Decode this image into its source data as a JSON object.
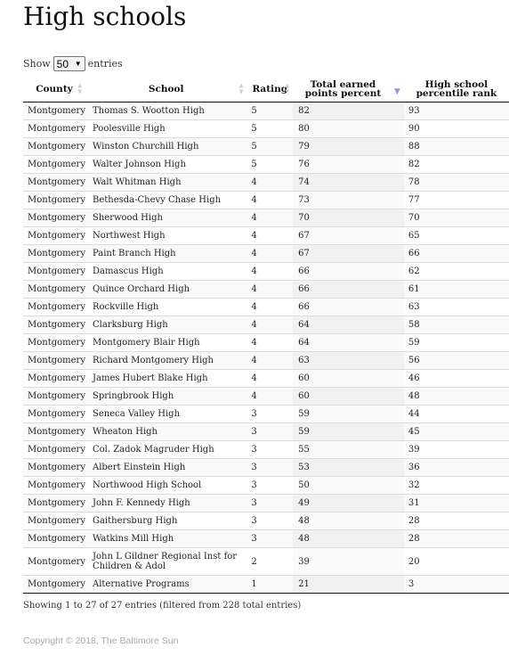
{
  "title": "High schools",
  "length_menu": {
    "show": "Show",
    "value": "50",
    "entries": "entries"
  },
  "columns": [
    {
      "label": "County",
      "sort": "both"
    },
    {
      "label": "School",
      "sort": "both"
    },
    {
      "label": "Rating",
      "sort": "both"
    },
    {
      "label": "Total earned points percent",
      "sort": "desc"
    },
    {
      "label": "High school percentile rank",
      "sort": "none"
    }
  ],
  "rows": [
    {
      "county": "Montgomery",
      "school": "Thomas S. Wootton High",
      "rating": "5",
      "points": "82",
      "percentile": "93"
    },
    {
      "county": "Montgomery",
      "school": "Poolesville High",
      "rating": "5",
      "points": "80",
      "percentile": "90"
    },
    {
      "county": "Montgomery",
      "school": "Winston Churchill High",
      "rating": "5",
      "points": "79",
      "percentile": "88"
    },
    {
      "county": "Montgomery",
      "school": "Walter Johnson High",
      "rating": "5",
      "points": "76",
      "percentile": "82"
    },
    {
      "county": "Montgomery",
      "school": "Walt Whitman High",
      "rating": "4",
      "points": "74",
      "percentile": "78"
    },
    {
      "county": "Montgomery",
      "school": "Bethesda-Chevy Chase High",
      "rating": "4",
      "points": "73",
      "percentile": "77"
    },
    {
      "county": "Montgomery",
      "school": "Sherwood High",
      "rating": "4",
      "points": "70",
      "percentile": "70"
    },
    {
      "county": "Montgomery",
      "school": "Northwest High",
      "rating": "4",
      "points": "67",
      "percentile": "65"
    },
    {
      "county": "Montgomery",
      "school": "Paint Branch High",
      "rating": "4",
      "points": "67",
      "percentile": "66"
    },
    {
      "county": "Montgomery",
      "school": "Damascus High",
      "rating": "4",
      "points": "66",
      "percentile": "62"
    },
    {
      "county": "Montgomery",
      "school": "Quince Orchard High",
      "rating": "4",
      "points": "66",
      "percentile": "61"
    },
    {
      "county": "Montgomery",
      "school": "Rockville High",
      "rating": "4",
      "points": "66",
      "percentile": "63"
    },
    {
      "county": "Montgomery",
      "school": "Clarksburg High",
      "rating": "4",
      "points": "64",
      "percentile": "58"
    },
    {
      "county": "Montgomery",
      "school": "Montgomery Blair High",
      "rating": "4",
      "points": "64",
      "percentile": "59"
    },
    {
      "county": "Montgomery",
      "school": "Richard Montgomery High",
      "rating": "4",
      "points": "63",
      "percentile": "56"
    },
    {
      "county": "Montgomery",
      "school": "James Hubert Blake High",
      "rating": "4",
      "points": "60",
      "percentile": "46"
    },
    {
      "county": "Montgomery",
      "school": "Springbrook High",
      "rating": "4",
      "points": "60",
      "percentile": "48"
    },
    {
      "county": "Montgomery",
      "school": "Seneca Valley High",
      "rating": "3",
      "points": "59",
      "percentile": "44"
    },
    {
      "county": "Montgomery",
      "school": "Wheaton High",
      "rating": "3",
      "points": "59",
      "percentile": "45"
    },
    {
      "county": "Montgomery",
      "school": "Col. Zadok Magruder High",
      "rating": "3",
      "points": "55",
      "percentile": "39"
    },
    {
      "county": "Montgomery",
      "school": "Albert Einstein High",
      "rating": "3",
      "points": "53",
      "percentile": "36"
    },
    {
      "county": "Montgomery",
      "school": "Northwood High School",
      "rating": "3",
      "points": "50",
      "percentile": "32"
    },
    {
      "county": "Montgomery",
      "school": "John F. Kennedy High",
      "rating": "3",
      "points": "49",
      "percentile": "31"
    },
    {
      "county": "Montgomery",
      "school": "Gaithersburg High",
      "rating": "3",
      "points": "48",
      "percentile": "28"
    },
    {
      "county": "Montgomery",
      "school": "Watkins Mill High",
      "rating": "3",
      "points": "48",
      "percentile": "28"
    },
    {
      "county": "Montgomery",
      "school": "John L Gildner Regional Inst for Children & Adol",
      "rating": "2",
      "points": "39",
      "percentile": "20"
    },
    {
      "county": "Montgomery",
      "school": "Alternative Programs",
      "rating": "1",
      "points": "21",
      "percentile": "3"
    }
  ],
  "info": "Showing 1 to 27 of 27 entries (filtered from 228 total entries)",
  "copyright": "Copyright © 2018, The Baltimore Sun",
  "colors": {
    "sort_active": "#9a96e0",
    "sort_inactive": "#cccccc",
    "copyright": "#aaaaaa"
  }
}
